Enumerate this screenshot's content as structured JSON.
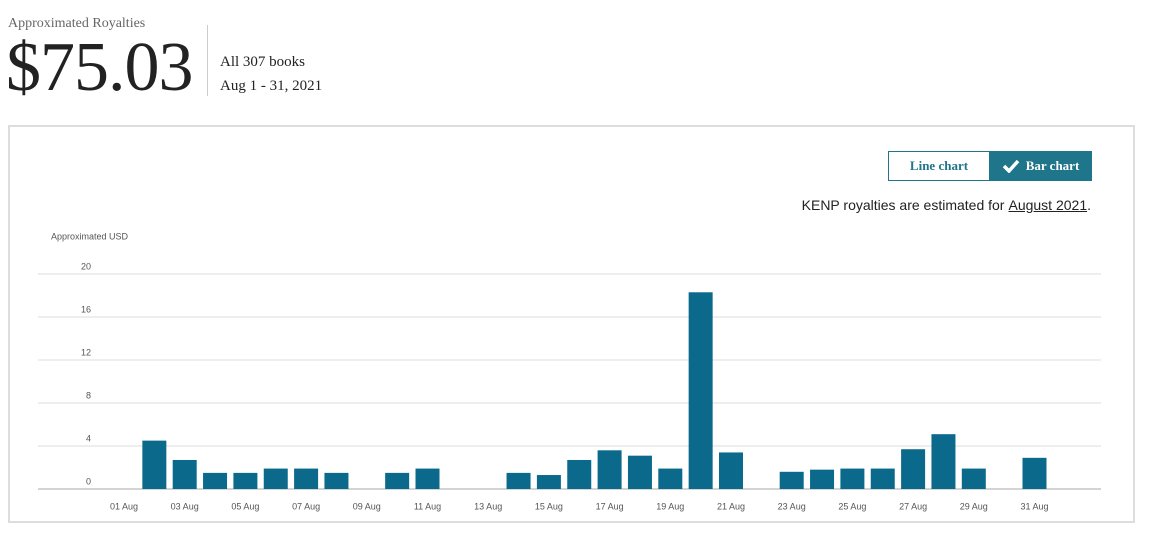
{
  "header": {
    "title": "Approximated Royalties",
    "amount": "$75.03",
    "books": "All 307 books",
    "period": "Aug 1 - 31, 2021"
  },
  "toggle": {
    "line": "Line chart",
    "bar": "Bar chart"
  },
  "note": {
    "text": "KENP royalties are estimated for",
    "link": "August 2021",
    "end": "."
  },
  "chart_data": {
    "type": "bar",
    "y_label": "Approximated USD",
    "categories": [
      "01 Aug",
      null,
      "03 Aug",
      null,
      "05 Aug",
      null,
      "07 Aug",
      null,
      "09 Aug",
      null,
      "11 Aug",
      null,
      "13 Aug",
      null,
      "15 Aug",
      null,
      "17 Aug",
      null,
      "19 Aug",
      null,
      "21 Aug",
      null,
      "23 Aug",
      null,
      "25 Aug",
      null,
      "27 Aug",
      null,
      "29 Aug",
      null,
      "31 Aug"
    ],
    "values": [
      0,
      4.5,
      2.7,
      1.5,
      1.5,
      1.9,
      1.9,
      1.5,
      0,
      1.5,
      1.9,
      0,
      0,
      1.5,
      1.3,
      2.7,
      3.6,
      3.1,
      1.9,
      18.3,
      3.4,
      0,
      1.6,
      1.8,
      1.9,
      1.9,
      3.7,
      5.1,
      1.9,
      0,
      2.9
    ],
    "color": "#0b6a8b",
    "ylim": [
      0,
      20
    ],
    "yticks": [
      0,
      4,
      8,
      12,
      16,
      20
    ],
    "grid": true
  }
}
